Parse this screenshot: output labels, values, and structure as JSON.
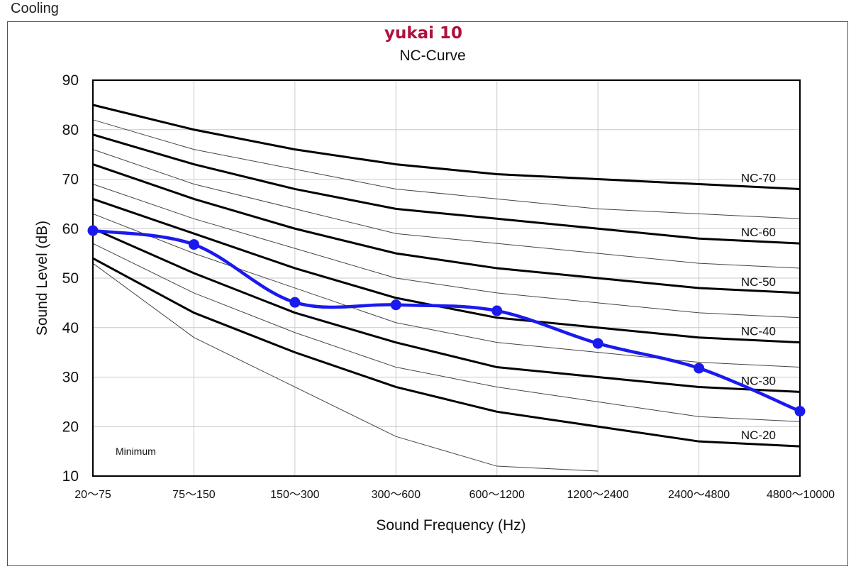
{
  "page_heading": "Cooling",
  "chart_data": {
    "type": "line",
    "title": "yukai 10",
    "subtitle": "NC-Curve",
    "xlabel": "Sound Frequency (Hz)",
    "ylabel": "Sound Level (dB)",
    "ylim": [
      10,
      90
    ],
    "yticks": [
      10,
      20,
      30,
      40,
      50,
      60,
      70,
      80,
      90
    ],
    "categories": [
      "20～75",
      "75～150",
      "150～300",
      "300～600",
      "600～1200",
      "1200～2400",
      "2400～4800",
      "4800～10000"
    ],
    "grid": true,
    "annotation": "Minimum",
    "nc_curves": [
      {
        "name": "NC-70",
        "labeled": true,
        "values": [
          85,
          80,
          76,
          73,
          71,
          70,
          69,
          68
        ]
      },
      {
        "name": "",
        "labeled": false,
        "values": [
          82,
          76,
          72,
          68,
          66,
          64,
          63,
          62
        ]
      },
      {
        "name": "NC-60",
        "labeled": true,
        "values": [
          79,
          73,
          68,
          64,
          62,
          60,
          58,
          57
        ]
      },
      {
        "name": "",
        "labeled": false,
        "values": [
          76,
          69,
          64,
          59,
          57,
          55,
          53,
          52
        ]
      },
      {
        "name": "NC-50",
        "labeled": true,
        "values": [
          73,
          66,
          60,
          55,
          52,
          50,
          48,
          47
        ]
      },
      {
        "name": "",
        "labeled": false,
        "values": [
          69,
          62,
          56,
          50,
          47,
          45,
          43,
          42
        ]
      },
      {
        "name": "NC-40",
        "labeled": true,
        "values": [
          66,
          59,
          52,
          46,
          42,
          40,
          38,
          37
        ]
      },
      {
        "name": "",
        "labeled": false,
        "values": [
          63,
          55,
          48,
          41,
          37,
          35,
          33,
          32
        ]
      },
      {
        "name": "NC-30",
        "labeled": true,
        "values": [
          60,
          51,
          43,
          37,
          32,
          30,
          28,
          27
        ]
      },
      {
        "name": "",
        "labeled": false,
        "values": [
          57,
          47,
          39,
          32,
          28,
          25,
          22,
          21
        ]
      },
      {
        "name": "NC-20",
        "labeled": true,
        "values": [
          54,
          43,
          35,
          28,
          23,
          20,
          17,
          16
        ]
      },
      {
        "name": "",
        "labeled": false,
        "values": [
          53,
          38,
          28,
          18,
          12,
          11,
          null,
          null
        ]
      }
    ],
    "measured": {
      "values": [
        59.6,
        56.8,
        45.1,
        44.6,
        43.4,
        36.8,
        31.8,
        23.1
      ],
      "color": "#1a1aee"
    }
  }
}
